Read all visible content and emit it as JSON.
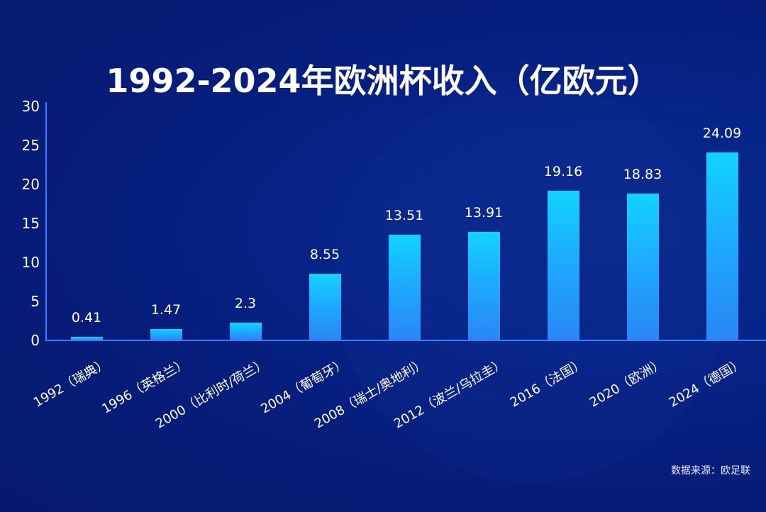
{
  "title": "1992-2024年欧洲杯收入（亿欧元）",
  "source": "数据来源：欧足联",
  "yticks": [
    "30",
    "25",
    "20",
    "15",
    "10",
    "5",
    "0"
  ],
  "bars": [
    {
      "label": "1992（瑞典）",
      "value": "0.41"
    },
    {
      "label": "1996（英格兰）",
      "value": "1.47"
    },
    {
      "label": "2000（比利时/荷兰）",
      "value": "2.3"
    },
    {
      "label": "2004（葡萄牙）",
      "value": "8.55"
    },
    {
      "label": "2008（瑞士/奥地利）",
      "value": "13.51"
    },
    {
      "label": "2012（波兰/乌拉圭）",
      "value": "13.91"
    },
    {
      "label": "2016（法国）",
      "value": "19.16"
    },
    {
      "label": "2020（欧洲）",
      "value": "18.83"
    },
    {
      "label": "2024（德国）",
      "value": "24.09"
    }
  ],
  "colors": {
    "background": "#061d7a",
    "axis": "#3a7bff",
    "bar_top": "#12d3ff",
    "bar_bottom": "#2a86f5",
    "text": "#ffffff"
  },
  "chart_data": {
    "type": "bar",
    "title": "1992-2024年欧洲杯收入（亿欧元）",
    "categories": [
      "1992（瑞典）",
      "1996（英格兰）",
      "2000（比利时/荷兰）",
      "2004（葡萄牙）",
      "2008（瑞士/奥地利）",
      "2012（波兰/乌拉圭）",
      "2016（法国）",
      "2020（欧洲）",
      "2024（德国）"
    ],
    "values": [
      0.41,
      1.47,
      2.3,
      8.55,
      13.51,
      13.91,
      19.16,
      18.83,
      24.09
    ],
    "xlabel": "",
    "ylabel": "",
    "ylim": [
      0,
      30
    ],
    "yticks": [
      0,
      5,
      10,
      15,
      20,
      25,
      30
    ],
    "grid": false,
    "data_labels": true,
    "legend": null,
    "annotations": [
      "数据来源：欧足联"
    ]
  }
}
